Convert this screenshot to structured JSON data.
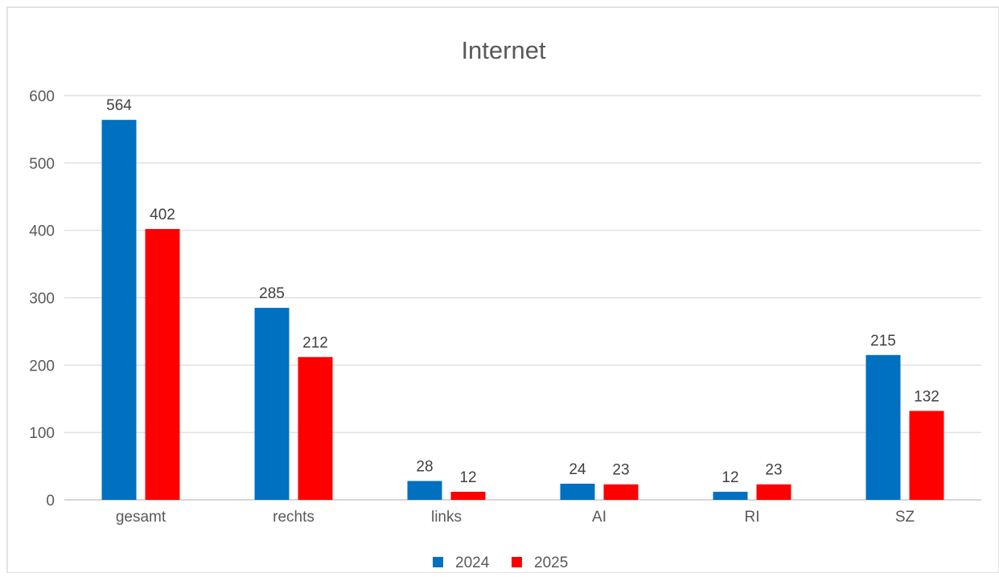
{
  "chart_data": {
    "type": "bar",
    "title": "Internet",
    "xlabel": "",
    "ylabel": "",
    "categories": [
      "gesamt",
      "rechts",
      "links",
      "AI",
      "RI",
      "SZ"
    ],
    "series": [
      {
        "name": "2024",
        "color": "#0070C0",
        "values": [
          564,
          285,
          28,
          24,
          12,
          215
        ]
      },
      {
        "name": "2025",
        "color": "#FF0000",
        "values": [
          402,
          212,
          12,
          23,
          23,
          132
        ]
      }
    ],
    "ylim": [
      0,
      600
    ],
    "yticks": [
      0,
      100,
      200,
      300,
      400,
      500,
      600
    ],
    "grid": true,
    "legend": "bottom",
    "data_labels": true
  }
}
